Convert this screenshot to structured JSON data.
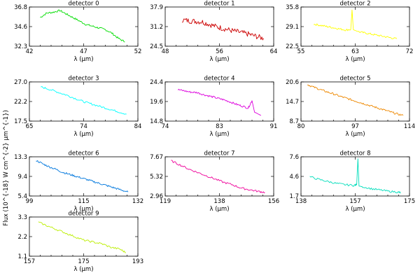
{
  "figure": {
    "ylabel": "Flux (10^{-18} W cm^{-2} µm^{-1})",
    "xlabel": "λ (µm)"
  },
  "chart_data": [
    {
      "type": "line",
      "title": "detector 0",
      "color": "#00dd00",
      "xlim": [
        42,
        52
      ],
      "xticks": [
        "42",
        "47",
        "52"
      ],
      "ylim": [
        32.3,
        36.8
      ],
      "yticks": [
        "32.3",
        "34.6",
        "36.8"
      ],
      "xlabel": "λ (µm)",
      "series": [
        {
          "x": [
            43.0,
            43.6,
            44.2,
            44.8,
            45.4,
            46.0,
            46.6,
            47.2,
            47.8,
            48.4,
            49.0,
            49.6,
            50.2,
            50.8
          ],
          "y": [
            35.6,
            36.1,
            36.2,
            36.4,
            36.0,
            35.6,
            35.2,
            34.8,
            34.6,
            34.4,
            34.2,
            33.8,
            33.2,
            32.8
          ]
        }
      ]
    },
    {
      "type": "line",
      "title": "detector 1",
      "color": "#cc0000",
      "xlim": [
        48,
        64
      ],
      "xticks": [
        "48",
        "56",
        "64"
      ],
      "ylim": [
        24.5,
        37.9
      ],
      "yticks": [
        "24.5",
        "31.2",
        "37.9"
      ],
      "xlabel": "λ (µm)",
      "series": [
        {
          "x": [
            50.5,
            51.5,
            52.5,
            53.5,
            54.5,
            55.5,
            56.5,
            57.5,
            58.5,
            59.5,
            60.5,
            61.5,
            62.5
          ],
          "y": [
            33.5,
            33.2,
            33.0,
            32.8,
            32.0,
            31.2,
            30.6,
            30.0,
            29.5,
            29.0,
            28.5,
            27.8,
            27.2
          ]
        }
      ]
    },
    {
      "type": "line",
      "title": "detector 2",
      "color": "#ffff00",
      "xlim": [
        55,
        72
      ],
      "xticks": [
        "55",
        "63",
        "72"
      ],
      "ylim": [
        22.5,
        35.8
      ],
      "yticks": [
        "22.5",
        "29.1",
        "35.8"
      ],
      "xlabel": "λ (µm)",
      "series": [
        {
          "x": [
            57.0,
            58.0,
            59.0,
            60.0,
            61.0,
            62.0,
            62.8,
            63.0,
            63.2,
            64.0,
            65.0,
            66.0,
            67.0,
            68.0,
            69.0,
            70.0
          ],
          "y": [
            30.0,
            29.6,
            29.2,
            28.8,
            28.4,
            28.0,
            28.2,
            34.8,
            28.1,
            27.4,
            27.0,
            26.6,
            26.2,
            25.8,
            25.4,
            25.0
          ]
        }
      ]
    },
    {
      "type": "line",
      "title": "detector 3",
      "color": "#00ffff",
      "xlim": [
        65,
        84
      ],
      "xticks": [
        "65",
        "74",
        "84"
      ],
      "ylim": [
        17.5,
        27.0
      ],
      "yticks": [
        "17.5",
        "22.2",
        "27.0"
      ],
      "xlabel": "λ (µm)",
      "series": [
        {
          "x": [
            67.0,
            68.5,
            70.0,
            71.5,
            73.0,
            74.5,
            76.0,
            77.5,
            79.0,
            80.5,
            82.0
          ],
          "y": [
            25.8,
            25.2,
            24.5,
            23.8,
            23.0,
            22.2,
            21.6,
            21.0,
            20.4,
            19.8,
            19.2
          ]
        }
      ]
    },
    {
      "type": "line",
      "title": "detector 4",
      "color": "#dd00dd",
      "xlim": [
        74,
        91
      ],
      "xticks": [
        "74",
        "83",
        "91"
      ],
      "ylim": [
        14.8,
        24.4
      ],
      "yticks": [
        "14.8",
        "19.6",
        "24.4"
      ],
      "xlabel": "λ (µm)",
      "series": [
        {
          "x": [
            76.0,
            77.0,
            78.0,
            79.0,
            80.0,
            81.0,
            82.0,
            83.0,
            84.0,
            85.0,
            86.0,
            87.0,
            87.6,
            88.0,
            89.0
          ],
          "y": [
            22.5,
            22.2,
            21.9,
            21.8,
            21.3,
            20.9,
            20.5,
            20.1,
            19.6,
            19.0,
            18.5,
            18.0,
            19.8,
            17.0,
            16.2
          ]
        }
      ]
    },
    {
      "type": "line",
      "title": "detector 5",
      "color": "#ee8800",
      "xlim": [
        80,
        114
      ],
      "xticks": [
        "80",
        "97",
        "114"
      ],
      "ylim": [
        8.7,
        20.6
      ],
      "yticks": [
        "8.7",
        "14.7",
        "20.6"
      ],
      "xlabel": "λ (µm)",
      "series": [
        {
          "x": [
            82,
            84,
            86,
            88,
            90,
            92,
            94,
            96,
            98,
            100,
            102,
            104,
            106,
            108,
            110,
            112
          ],
          "y": [
            19.8,
            19.0,
            18.3,
            17.6,
            17.0,
            16.3,
            15.7,
            15.1,
            14.5,
            13.9,
            13.3,
            12.7,
            12.1,
            11.5,
            10.9,
            10.4
          ]
        }
      ]
    },
    {
      "type": "line",
      "title": "detector 6",
      "color": "#0077dd",
      "xlim": [
        99,
        132
      ],
      "xticks": [
        "99",
        "115",
        "132"
      ],
      "ylim": [
        5.4,
        13.3
      ],
      "yticks": [
        "5.4",
        "9.4",
        "13.3"
      ],
      "xlabel": "λ (µm)",
      "series": [
        {
          "x": [
            101,
            103,
            105,
            107,
            109,
            111,
            113,
            115,
            117,
            119,
            121,
            123,
            125,
            127,
            129
          ],
          "y": [
            12.6,
            11.9,
            11.3,
            10.8,
            10.2,
            9.8,
            9.4,
            9.0,
            8.6,
            8.2,
            7.8,
            7.4,
            7.0,
            6.6,
            6.2
          ]
        }
      ]
    },
    {
      "type": "line",
      "title": "detector 7",
      "color": "#ee0099",
      "xlim": [
        119,
        156
      ],
      "xticks": [
        "119",
        "138",
        "156"
      ],
      "ylim": [
        2.96,
        7.67
      ],
      "yticks": [
        "2.96",
        "5.32",
        "7.67"
      ],
      "xlabel": "λ (µm)",
      "series": [
        {
          "x": [
            121,
            124,
            127,
            130,
            133,
            136,
            139,
            142,
            145,
            148,
            151,
            153
          ],
          "y": [
            7.2,
            6.7,
            6.2,
            5.8,
            5.4,
            5.0,
            4.6,
            4.3,
            3.9,
            3.7,
            3.5,
            3.4
          ]
        }
      ]
    },
    {
      "type": "line",
      "title": "detector 8",
      "color": "#00ddbb",
      "xlim": [
        138,
        175
      ],
      "xticks": [
        "138",
        "157",
        "175"
      ],
      "ylim": [
        1.7,
        7.6
      ],
      "yticks": [
        "1.7",
        "4.6",
        "7.6"
      ],
      "xlabel": "λ (µm)",
      "series": [
        {
          "x": [
            141,
            144,
            147,
            150,
            153,
            156,
            157.0,
            157.4,
            157.8,
            159,
            162,
            165,
            168,
            171,
            172
          ],
          "y": [
            4.6,
            4.2,
            3.9,
            3.6,
            3.4,
            3.3,
            3.4,
            7.3,
            3.2,
            3.1,
            2.8,
            2.6,
            2.4,
            2.3,
            2.2
          ]
        }
      ]
    },
    {
      "type": "line",
      "title": "detector 9",
      "color": "#bbee00",
      "xlim": [
        157,
        193
      ],
      "xticks": [
        "157",
        "175",
        "193"
      ],
      "ylim": [
        1.1,
        3.3
      ],
      "yticks": [
        "1.1",
        "2.2",
        "3.3"
      ],
      "xlabel": "λ (µm)",
      "series": [
        {
          "x": [
            160,
            163,
            166,
            169,
            172,
            175,
            178,
            181,
            184,
            187,
            189
          ],
          "y": [
            3.0,
            2.8,
            2.6,
            2.4,
            2.2,
            2.0,
            1.9,
            1.8,
            1.6,
            1.5,
            1.3
          ]
        }
      ]
    }
  ]
}
